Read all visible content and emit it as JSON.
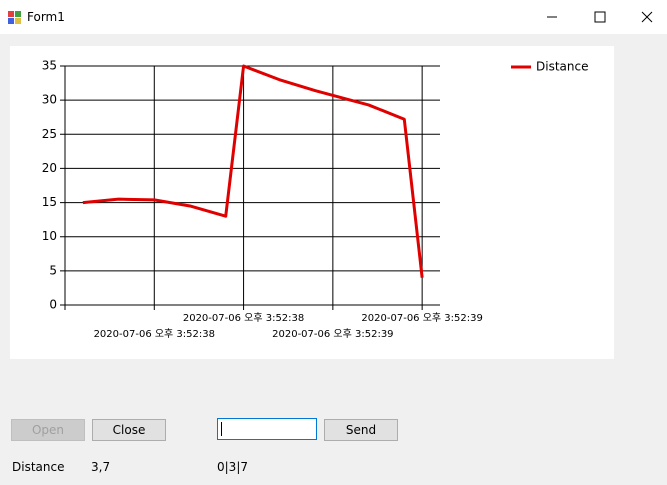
{
  "window": {
    "title": "Form1"
  },
  "chart_data": {
    "type": "line",
    "x": [
      0.2,
      0.6,
      1.0,
      1.4,
      1.8,
      2.0,
      2.4,
      2.8,
      3.2,
      3.4,
      3.8,
      4.0
    ],
    "series": [
      {
        "name": "Distance",
        "color": "#e00000",
        "values": [
          15,
          15.5,
          15.4,
          14.5,
          13,
          35,
          33,
          31.4,
          30,
          29.3,
          27.2,
          4
        ]
      }
    ],
    "xlim": [
      0,
      4.2
    ],
    "xticks": [
      {
        "value": 1,
        "label": "2020-07-06 오후 3:52:38"
      },
      {
        "value": 2,
        "label": "2020-07-06 오후 3:52:38"
      },
      {
        "value": 3,
        "label": "2020-07-06 오후 3:52:39"
      },
      {
        "value": 4,
        "label": "2020-07-06 오후 3:52:39"
      }
    ],
    "ylim": [
      0,
      35
    ],
    "yticks": [
      0,
      5,
      10,
      15,
      20,
      25,
      30,
      35
    ],
    "grid": true,
    "legend": "top-right"
  },
  "controls": {
    "open": "Open",
    "close": "Close",
    "send": "Send"
  },
  "status": {
    "label": "Distance",
    "value": "3,7",
    "raw": "0|3|7"
  }
}
